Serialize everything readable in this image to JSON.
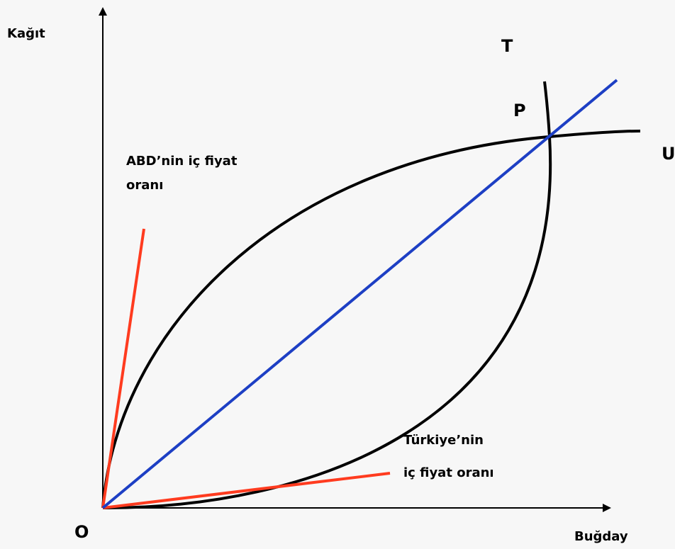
{
  "axes": {
    "y_label": "Kağıt",
    "x_label": "Buğday",
    "origin": "O"
  },
  "curve_labels": {
    "t": "T",
    "u": "U"
  },
  "point_label": "P",
  "usa_ratio": {
    "line1": "ABD’nin iç fiyat",
    "line2": "oranı"
  },
  "turkey_ratio": {
    "line1": "Türkiye’nin",
    "line2": "iç fiyat oranı"
  }
}
